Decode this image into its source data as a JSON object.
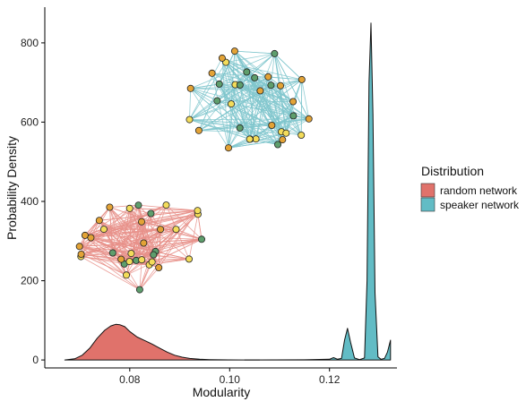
{
  "chart_data": {
    "type": "area",
    "title": "",
    "xlabel": "Modularity",
    "ylabel": "Probability Density",
    "xlim": [
      0.063,
      0.1335
    ],
    "ylim": [
      -20,
      890
    ],
    "x_ticks": [
      0.08,
      0.1,
      0.12
    ],
    "x_tick_labels": [
      "0.08",
      "0.10",
      "0.12"
    ],
    "y_ticks": [
      0,
      200,
      400,
      600,
      800
    ],
    "y_tick_labels": [
      "0",
      "200",
      "400",
      "600",
      "800"
    ],
    "grid": false,
    "legend": {
      "title": "Distribution",
      "position": "right",
      "entries": [
        {
          "label": "random network",
          "color": "#e0726b"
        },
        {
          "label": "speaker network",
          "color": "#62bcc5"
        }
      ]
    },
    "series": [
      {
        "name": "random network",
        "color": "#e0726b",
        "x": [
          0.067,
          0.069,
          0.0705,
          0.072,
          0.0735,
          0.075,
          0.0762,
          0.0772,
          0.078,
          0.079,
          0.08,
          0.0815,
          0.083,
          0.0845,
          0.086,
          0.0875,
          0.089,
          0.0905,
          0.092,
          0.094,
          0.096,
          0.098,
          0.1,
          0.103,
          0.106
        ],
        "y": [
          0,
          3,
          12,
          30,
          55,
          75,
          86,
          90,
          89,
          84,
          72,
          58,
          49,
          40,
          30,
          20,
          12,
          7,
          4,
          2,
          1,
          0.5,
          0.3,
          0.1,
          0
        ]
      },
      {
        "name": "speaker network",
        "color": "#62bcc5",
        "x": [
          0.103,
          0.115,
          0.12,
          0.1208,
          0.1216,
          0.1224,
          0.123,
          0.1236,
          0.1242,
          0.125,
          0.126,
          0.127,
          0.1275,
          0.1279,
          0.1283,
          0.1287,
          0.1291,
          0.1297,
          0.1303,
          0.131,
          0.1316,
          0.1322
        ],
        "y": [
          0,
          0.5,
          2,
          6,
          2,
          4,
          50,
          80,
          45,
          5,
          1,
          5,
          200,
          700,
          850,
          620,
          170,
          8,
          2,
          4,
          20,
          50
        ]
      }
    ]
  },
  "insets": {
    "speaker_network_colors": {
      "edge": "#7fc6cd",
      "node_yellow": "#f3dc5a",
      "node_orange": "#e3a336",
      "node_green": "#5e9e6c"
    },
    "random_network_colors": {
      "edge": "#e8908a",
      "node_yellow": "#f3dc5a",
      "node_orange": "#e3a336",
      "node_green": "#5e9e6c"
    }
  }
}
